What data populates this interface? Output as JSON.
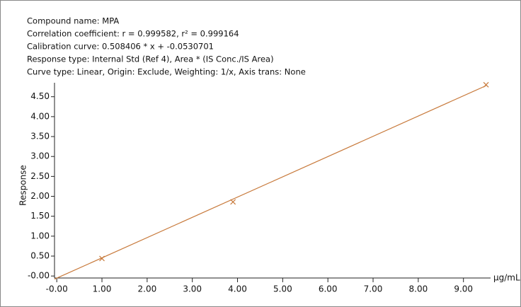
{
  "chart_data": {
    "type": "scatter",
    "annotations": [
      "Compound name: MPA",
      "Correlation coefficient: r = 0.999582, r² = 0.999164",
      "Calibration curve: 0.508406 * x + -0.0530701",
      "Response type: Internal Std (Ref 4), Area * (IS Conc./IS Area)",
      "Curve type: Linear, Origin: Exclude, Weighting: 1/x, Axis trans: None"
    ],
    "fit": {
      "slope": 0.508406,
      "intercept": -0.0530701
    },
    "x_label": "µg/mL",
    "y_label": "Response",
    "x": [
      1.0,
      3.9,
      9.5
    ],
    "values": [
      0.44,
      1.86,
      4.8
    ],
    "color": "#c87a3c",
    "xlim": [
      -0.05,
      9.6
    ],
    "ylim": [
      -0.05,
      4.85
    ],
    "xticks": [
      {
        "value": 0,
        "label": "-0.00"
      },
      {
        "value": 1,
        "label": "1.00"
      },
      {
        "value": 2,
        "label": "2.00"
      },
      {
        "value": 3,
        "label": "3.00"
      },
      {
        "value": 4,
        "label": "4.00"
      },
      {
        "value": 5,
        "label": "5.00"
      },
      {
        "value": 6,
        "label": "6.00"
      },
      {
        "value": 7,
        "label": "7.00"
      },
      {
        "value": 8,
        "label": "8.00"
      },
      {
        "value": 9,
        "label": "9.00"
      }
    ],
    "yticks": [
      {
        "value": 0,
        "label": "-0.00"
      },
      {
        "value": 0.5,
        "label": "0.50"
      },
      {
        "value": 1,
        "label": "1.00"
      },
      {
        "value": 1.5,
        "label": "1.50"
      },
      {
        "value": 2,
        "label": "2.00"
      },
      {
        "value": 2.5,
        "label": "2.50"
      },
      {
        "value": 3,
        "label": "3.00"
      },
      {
        "value": 3.5,
        "label": "3.50"
      },
      {
        "value": 4,
        "label": "4.00"
      },
      {
        "value": 4.5,
        "label": "4.50"
      }
    ]
  }
}
